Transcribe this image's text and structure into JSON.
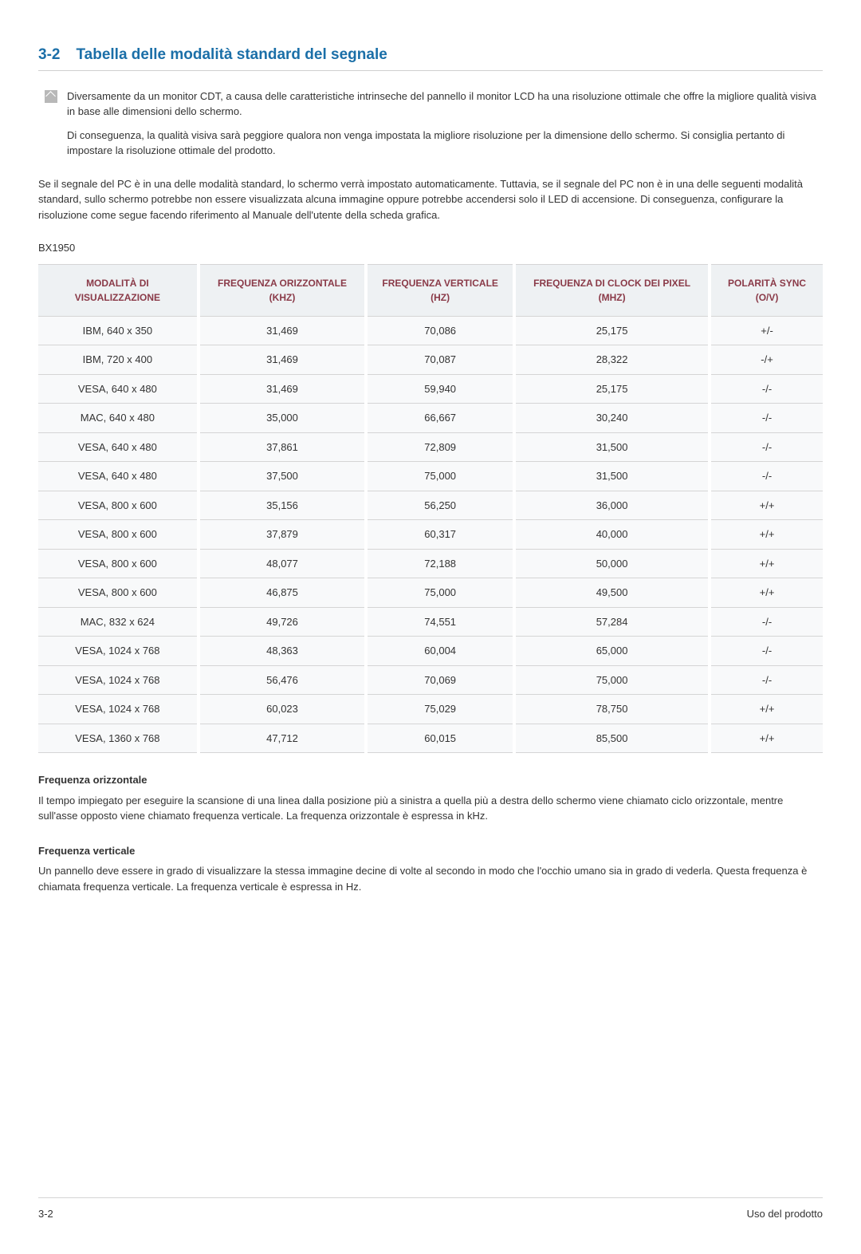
{
  "heading": {
    "number": "3-2",
    "title": "Tabella delle modalità standard del segnale"
  },
  "note": {
    "p1": "Diversamente da un monitor CDT, a causa delle caratteristiche intrinseche del pannello il monitor LCD ha una risoluzione ottimale che offre la migliore qualità visiva in base alle dimensioni dello schermo.",
    "p2": "Di conseguenza, la qualità visiva sarà peggiore qualora non venga impostata la migliore risoluzione per la dimensione dello schermo. Si consiglia pertanto di impostare la risoluzione ottimale del prodotto."
  },
  "intro": "Se il segnale del PC è in una delle modalità standard, lo schermo verrà impostato automaticamente. Tuttavia, se il segnale del PC non è in una delle seguenti modalità standard, sullo schermo potrebbe non essere visualizzata alcuna immagine oppure potrebbe accendersi solo il LED di accensione. Di conseguenza, configurare la risoluzione come segue facendo riferimento al Manuale dell'utente della scheda grafica.",
  "model": "BX1950",
  "table": {
    "headers": {
      "c1": "MODALITÀ DI VISUALIZZAZIONE",
      "c2": "FREQUENZA ORIZZONTALE (KHZ)",
      "c3": "FREQUENZA VERTICALE (HZ)",
      "c4": "FREQUENZA DI CLOCK DEI PIXEL (MHZ)",
      "c5": "POLARITÀ SYNC (O/V)"
    },
    "rows": [
      {
        "c1": "IBM, 640 x 350",
        "c2": "31,469",
        "c3": "70,086",
        "c4": "25,175",
        "c5": "+/-"
      },
      {
        "c1": "IBM, 720 x 400",
        "c2": "31,469",
        "c3": "70,087",
        "c4": "28,322",
        "c5": "-/+"
      },
      {
        "c1": "VESA, 640 x 480",
        "c2": "31,469",
        "c3": "59,940",
        "c4": "25,175",
        "c5": "-/-"
      },
      {
        "c1": "MAC, 640 x 480",
        "c2": "35,000",
        "c3": "66,667",
        "c4": "30,240",
        "c5": "-/-"
      },
      {
        "c1": "VESA, 640 x 480",
        "c2": "37,861",
        "c3": "72,809",
        "c4": "31,500",
        "c5": "-/-"
      },
      {
        "c1": "VESA, 640 x 480",
        "c2": "37,500",
        "c3": "75,000",
        "c4": "31,500",
        "c5": "-/-"
      },
      {
        "c1": "VESA, 800 x 600",
        "c2": "35,156",
        "c3": "56,250",
        "c4": "36,000",
        "c5": "+/+"
      },
      {
        "c1": "VESA, 800 x 600",
        "c2": "37,879",
        "c3": "60,317",
        "c4": "40,000",
        "c5": "+/+"
      },
      {
        "c1": "VESA, 800 x 600",
        "c2": "48,077",
        "c3": "72,188",
        "c4": "50,000",
        "c5": "+/+"
      },
      {
        "c1": "VESA, 800 x 600",
        "c2": "46,875",
        "c3": "75,000",
        "c4": "49,500",
        "c5": "+/+"
      },
      {
        "c1": "MAC, 832 x 624",
        "c2": "49,726",
        "c3": "74,551",
        "c4": "57,284",
        "c5": "-/-"
      },
      {
        "c1": "VESA, 1024 x 768",
        "c2": "48,363",
        "c3": "60,004",
        "c4": "65,000",
        "c5": "-/-"
      },
      {
        "c1": "VESA, 1024 x 768",
        "c2": "56,476",
        "c3": "70,069",
        "c4": "75,000",
        "c5": "-/-"
      },
      {
        "c1": "VESA, 1024 x 768",
        "c2": "60,023",
        "c3": "75,029",
        "c4": "78,750",
        "c5": "+/+"
      },
      {
        "c1": "VESA, 1360 x 768",
        "c2": "47,712",
        "c3": "60,015",
        "c4": "85,500",
        "c5": "+/+"
      }
    ]
  },
  "defs": {
    "h1": "Frequenza orizzontale",
    "p1": "Il tempo impiegato per eseguire la scansione di una linea dalla posizione più a sinistra a quella più a destra dello schermo viene chiamato ciclo orizzontale, mentre sull'asse opposto viene chiamato frequenza verticale. La frequenza orizzontale è espressa in kHz.",
    "h2": "Frequenza verticale",
    "p2": "Un pannello deve essere in grado di visualizzare la stessa immagine decine di volte al secondo in modo che l'occhio umano sia in grado di vederla. Questa frequenza è chiamata frequenza verticale. La frequenza verticale è espressa in Hz."
  },
  "footer": {
    "left": "3-2",
    "right": "Uso del prodotto"
  }
}
